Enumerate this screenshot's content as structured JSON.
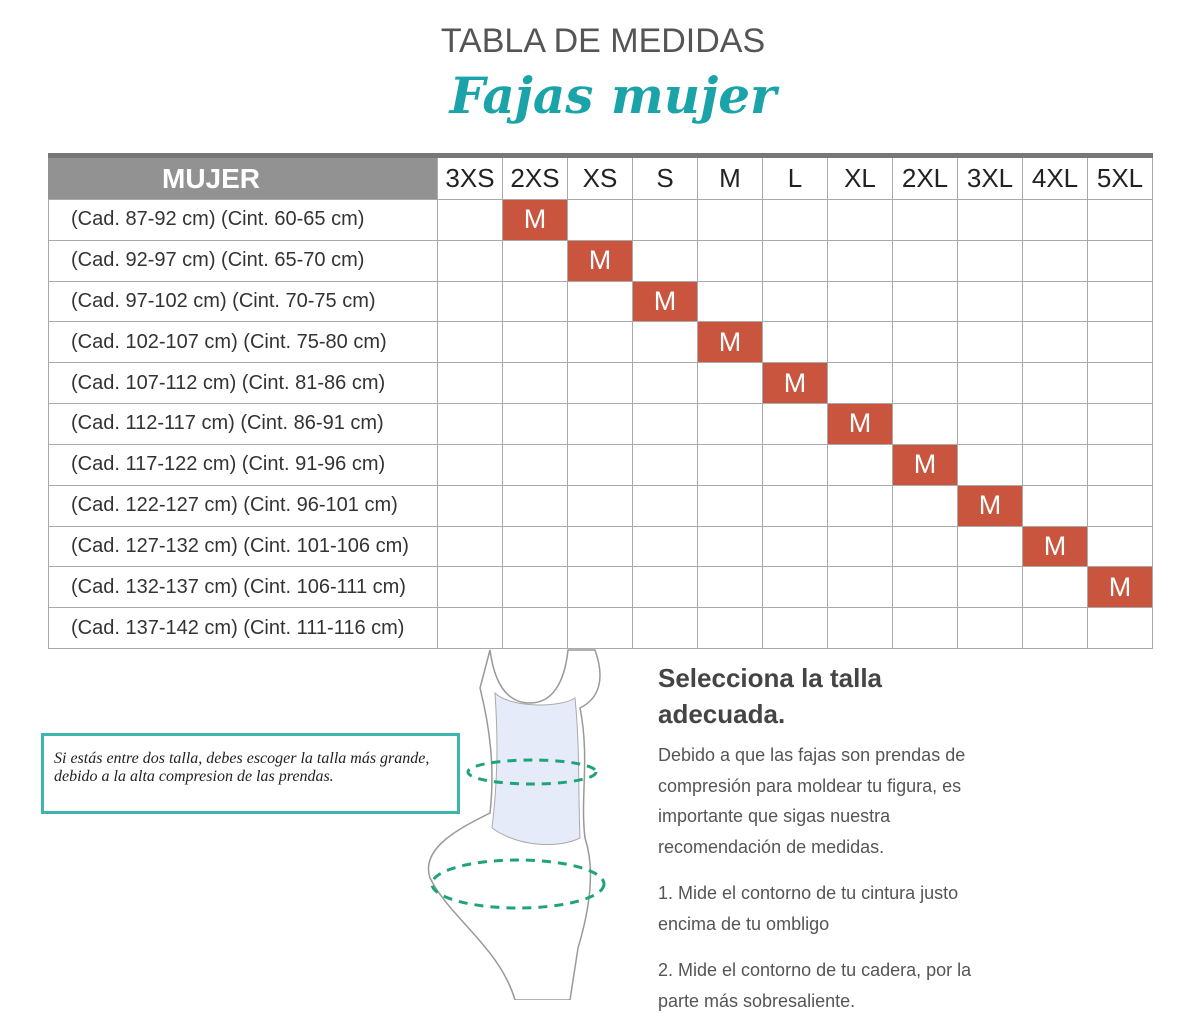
{
  "header": {
    "title": "TABLA DE MEDIDAS",
    "subtitle": "Fajas mujer"
  },
  "table": {
    "corner": "MUJER",
    "columns": [
      "3XS",
      "2XS",
      "XS",
      "S",
      "M",
      "L",
      "XL",
      "2XL",
      "3XL",
      "4XL",
      "5XL"
    ],
    "rows": [
      {
        "label": "(Cad. 87-92 cm) (Cint. 60-65 cm)",
        "cells": [
          null,
          "M",
          null,
          null,
          null,
          null,
          null,
          null,
          null,
          null,
          null
        ]
      },
      {
        "label": "(Cad. 92-97 cm) (Cint. 65-70 cm)",
        "cells": [
          null,
          null,
          "M",
          null,
          null,
          null,
          null,
          null,
          null,
          null,
          null
        ]
      },
      {
        "label": "(Cad. 97-102 cm) (Cint. 70-75 cm)",
        "cells": [
          null,
          null,
          null,
          "M",
          null,
          null,
          null,
          null,
          null,
          null,
          null
        ]
      },
      {
        "label": "(Cad. 102-107 cm) (Cint. 75-80 cm)",
        "cells": [
          null,
          null,
          null,
          null,
          "M",
          null,
          null,
          null,
          null,
          null,
          null
        ]
      },
      {
        "label": "(Cad. 107-112 cm) (Cint. 81-86 cm)",
        "cells": [
          null,
          null,
          null,
          null,
          null,
          "M",
          null,
          null,
          null,
          null,
          null
        ]
      },
      {
        "label": "(Cad. 112-117 cm) (Cint. 86-91 cm)",
        "cells": [
          null,
          null,
          null,
          null,
          null,
          null,
          "M",
          null,
          null,
          null,
          null
        ]
      },
      {
        "label": "(Cad. 117-122 cm) (Cint. 91-96 cm)",
        "cells": [
          null,
          null,
          null,
          null,
          null,
          null,
          null,
          "M",
          null,
          null,
          null
        ]
      },
      {
        "label": "(Cad. 122-127 cm) (Cint. 96-101 cm)",
        "cells": [
          null,
          null,
          null,
          null,
          null,
          null,
          null,
          null,
          "M",
          null,
          null
        ]
      },
      {
        "label": "(Cad. 127-132 cm) (Cint. 101-106 cm)",
        "cells": [
          null,
          null,
          null,
          null,
          null,
          null,
          null,
          null,
          null,
          "M",
          null
        ]
      },
      {
        "label": "(Cad. 132-137 cm) (Cint. 106-111 cm)",
        "cells": [
          null,
          null,
          null,
          null,
          null,
          null,
          null,
          null,
          null,
          null,
          "M"
        ]
      },
      {
        "label": "(Cad. 137-142 cm) (Cint. 111-116 cm)",
        "cells": [
          null,
          null,
          null,
          null,
          null,
          null,
          null,
          null,
          null,
          null,
          null
        ]
      }
    ]
  },
  "note": "Si estás entre dos talla, debes escoger la talla más grande, debido a la alta compresion de las prendas.",
  "guide": {
    "heading": "Selecciona la talla adecuada.",
    "intro": "Debido a que las fajas son prendas de compresión para moldear tu figura, es importante que sigas nuestra recomendación de medidas.",
    "steps": [
      "1. Mide el contorno de tu cintura justo encima de tu ombligo",
      "2. Mide el contorno de tu cadera, por la parte más sobresaliente."
    ]
  }
}
